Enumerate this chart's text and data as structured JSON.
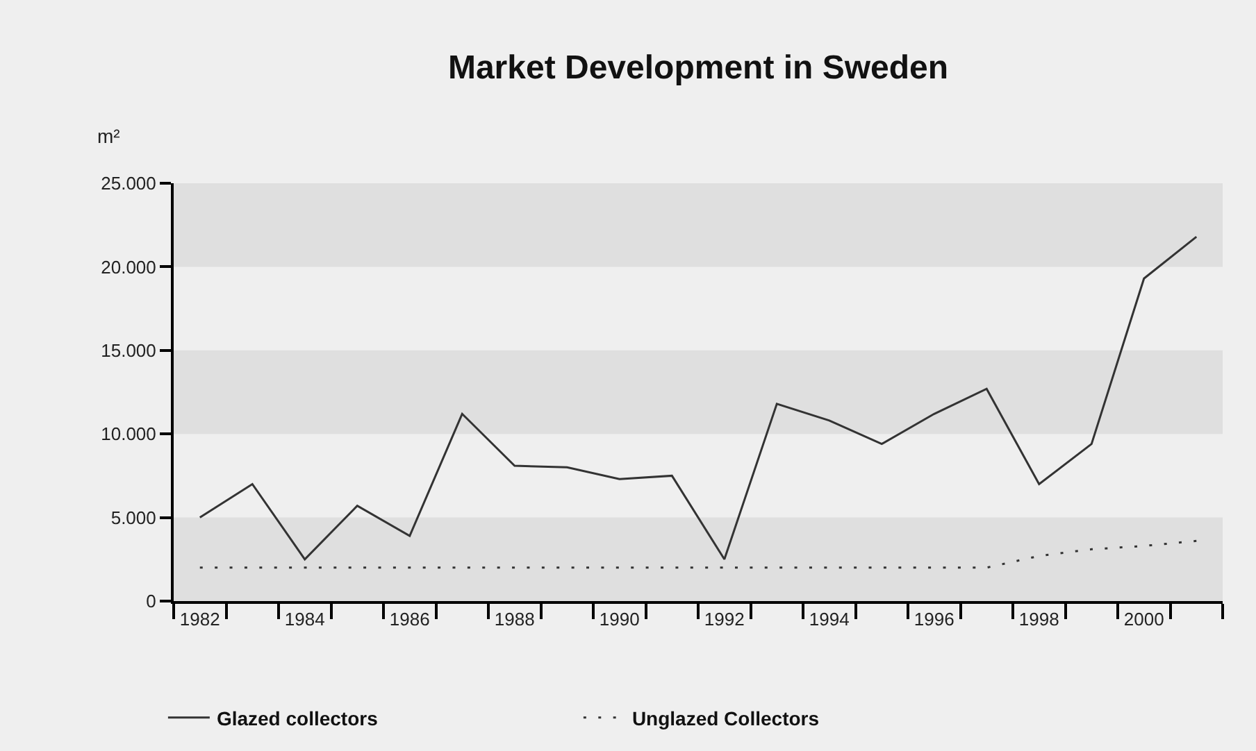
{
  "chart_data": {
    "type": "line",
    "title": "Market Development in Sweden",
    "ylabel": "m²",
    "x": [
      1982,
      1983,
      1984,
      1985,
      1986,
      1987,
      1988,
      1989,
      1990,
      1991,
      1992,
      1993,
      1994,
      1995,
      1996,
      1997,
      1998,
      1999,
      2000,
      2001
    ],
    "xlim": [
      1981.5,
      2001.5
    ],
    "xticks": [
      {
        "value": 1981.5,
        "label": null
      },
      1982,
      {
        "value": 1982.5,
        "label": null
      },
      {
        "value": 1983.5,
        "label": null
      },
      1984,
      {
        "value": 1984.5,
        "label": null
      },
      {
        "value": 1985.5,
        "label": null
      },
      1986,
      {
        "value": 1986.5,
        "label": null
      },
      {
        "value": 1987.5,
        "label": null
      },
      1988,
      {
        "value": 1988.5,
        "label": null
      },
      {
        "value": 1989.5,
        "label": null
      },
      1990,
      {
        "value": 1990.5,
        "label": null
      },
      {
        "value": 1991.5,
        "label": null
      },
      1992,
      {
        "value": 1992.5,
        "label": null
      },
      {
        "value": 1993.5,
        "label": null
      },
      1994,
      {
        "value": 1994.5,
        "label": null
      },
      {
        "value": 1995.5,
        "label": null
      },
      1996,
      {
        "value": 1996.5,
        "label": null
      },
      {
        "value": 1997.5,
        "label": null
      },
      1998,
      {
        "value": 1998.5,
        "label": null
      },
      {
        "value": 1999.5,
        "label": null
      },
      2000,
      {
        "value": 2000.5,
        "label": null
      },
      {
        "value": 2001.5,
        "label": null
      }
    ],
    "ylim": [
      0,
      25000
    ],
    "yticks": [
      0,
      {
        "value": 5000,
        "label": "5.000"
      },
      {
        "value": 10000,
        "label": "10.000"
      },
      {
        "value": 15000,
        "label": "15.000"
      },
      {
        "value": 20000,
        "label": "20.000"
      },
      {
        "value": 25000,
        "label": "25.000"
      }
    ],
    "series": [
      {
        "name": "Glazed collectors",
        "color": "#333333",
        "line_style": "solid",
        "values": [
          5000,
          7000,
          2500,
          5700,
          3900,
          11200,
          8100,
          8000,
          7300,
          7500,
          2500,
          11800,
          10800,
          9400,
          11200,
          12700,
          7000,
          9400,
          19300,
          21800
        ]
      },
      {
        "name": "Unglazed Collectors",
        "color": "#333333",
        "line_style": "dotted",
        "values": [
          2000,
          2000,
          2000,
          2000,
          2000,
          2000,
          2000,
          2000,
          2000,
          2000,
          2000,
          2000,
          2000,
          2000,
          2000,
          2000,
          2700,
          3100,
          3300,
          3600
        ]
      }
    ],
    "bands": [
      {
        "axis": "y",
        "from": 0,
        "to": 5000,
        "color": "#dfdfdf"
      },
      {
        "axis": "y",
        "from": 10000,
        "to": 15000,
        "color": "#dfdfdf"
      },
      {
        "axis": "y",
        "from": 20000,
        "to": 25000,
        "color": "#dfdfdf"
      }
    ],
    "legend": "bottom"
  }
}
